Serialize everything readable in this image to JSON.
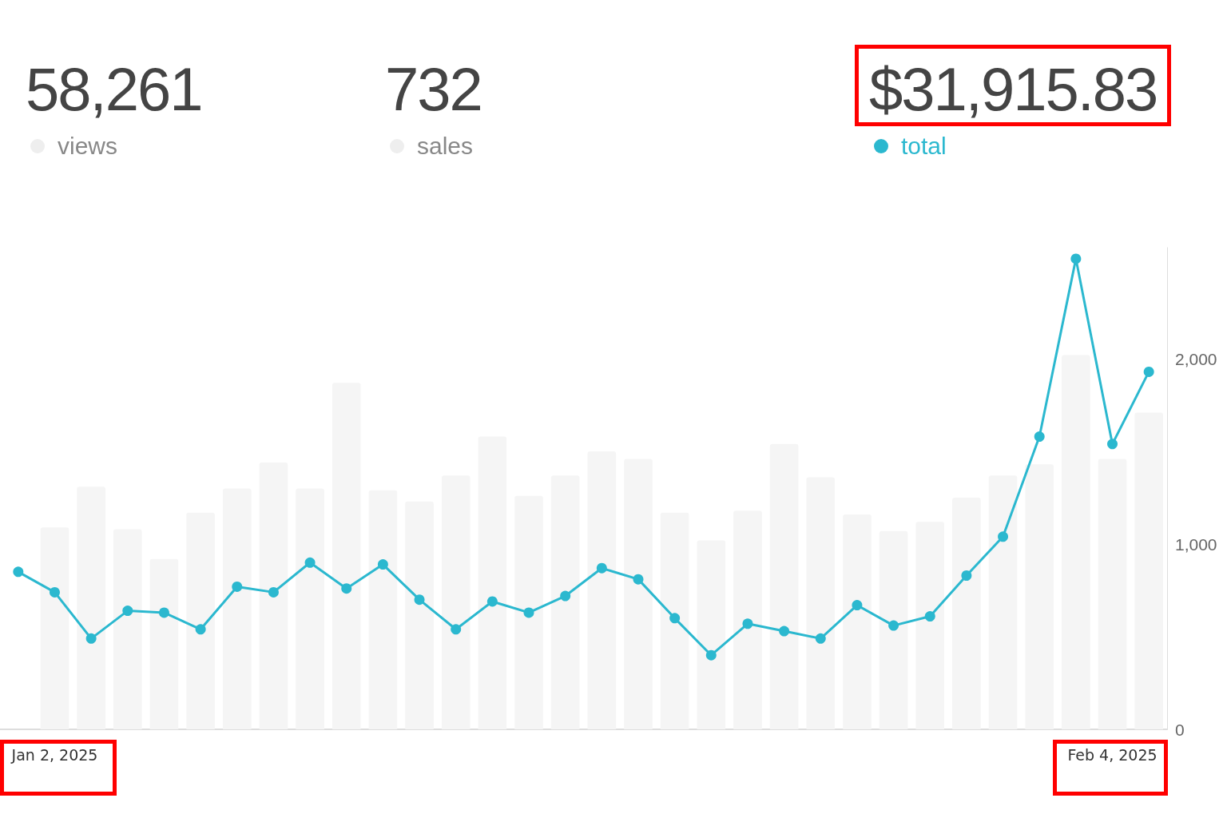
{
  "chart_data": {
    "type": "bar",
    "annotations": [
      "58,261",
      "views",
      "732",
      "sales",
      "$31,915.83"
    ],
    "categories": [
      null,
      "Jan 2, 2025",
      null,
      null,
      null,
      null,
      null,
      null,
      null,
      null,
      null,
      null,
      null,
      null,
      null,
      null,
      null,
      null,
      null,
      null,
      null,
      null,
      null,
      null,
      null,
      null,
      null,
      null,
      null,
      null,
      "Feb 4, 2025",
      null
    ],
    "series": [
      {
        "color": "#f5f5f5",
        "values": [
          null,
          1090,
          1310,
          1080,
          920,
          1170,
          1300,
          1440,
          1300,
          1870,
          1290,
          1230,
          1370,
          1580,
          1260,
          1370,
          1500,
          1460,
          1170,
          1020,
          1180,
          1540,
          1360,
          1160,
          1070,
          1120,
          1250,
          1370,
          1430,
          2020,
          1460,
          1710
        ]
      },
      {
        "type": "line",
        "name": "total",
        "color": "#2bb8cf",
        "marker": "circle",
        "values": [
          850,
          740,
          490,
          640,
          630,
          540,
          770,
          740,
          900,
          760,
          890,
          700,
          540,
          690,
          630,
          720,
          870,
          810,
          600,
          400,
          570,
          530,
          490,
          670,
          560,
          610,
          830,
          1040,
          1580,
          2540,
          1540,
          1930
        ]
      }
    ],
    "ylim": [
      0,
      2600
    ],
    "yticks": [
      0,
      {
        "value": 1000,
        "label": "1,000"
      },
      {
        "value": 2000,
        "label": "2,000"
      }
    ],
    "grid": false,
    "legend": "top"
  }
}
